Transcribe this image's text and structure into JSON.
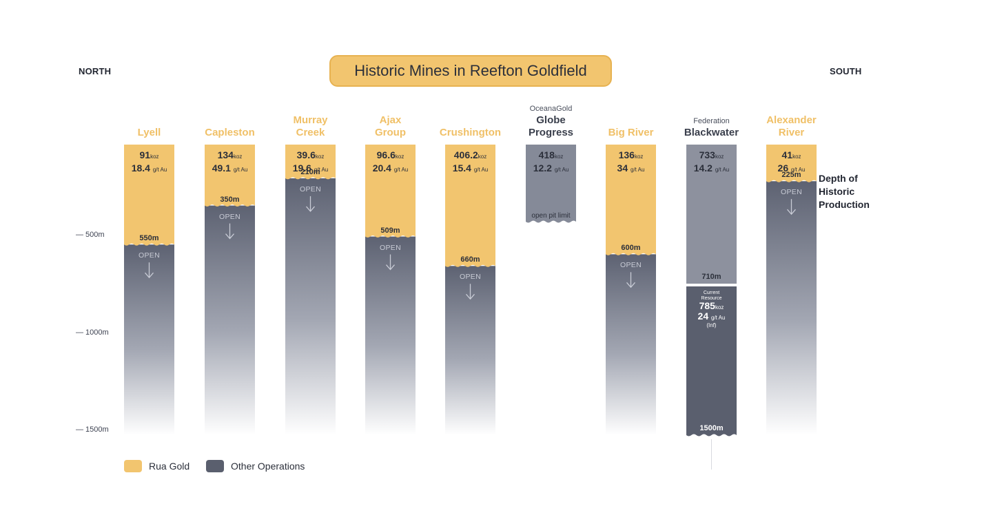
{
  "direction": {
    "north": "NORTH",
    "south": "SOUTH"
  },
  "title": "Historic Mines in Reefton Goldfield",
  "side_note": {
    "line1": "Depth of",
    "line2": "Historic",
    "line3": "Production"
  },
  "legend": [
    {
      "label": "Rua Gold",
      "color": "#f2c56f"
    },
    {
      "label": "Other Operations",
      "color": "#5a5f6e"
    }
  ],
  "colors": {
    "rua": "#f2c56f",
    "rua_edge": "#e7b251",
    "other": "#858a98",
    "open_top": "#5d6272",
    "current_resource": "#5a5f6e"
  },
  "chart_data": {
    "type": "bar",
    "title": "Historic Mines in Reefton Goldfield",
    "y_axis": {
      "ticks": [
        "500m",
        "1000m",
        "1500m"
      ],
      "tick_values": [
        500,
        1000,
        1500
      ],
      "range": [
        0,
        1500
      ],
      "inverted": true
    },
    "mines": [
      {
        "name": "Lyell",
        "operator": "",
        "group": "rua",
        "koz": "91",
        "koz_unit": "koz",
        "grade": "18.4",
        "grade_unit": "g/t Au",
        "depth_m": 550,
        "depth_label": "550m",
        "open": "OPEN"
      },
      {
        "name": "Capleston",
        "operator": "",
        "group": "rua",
        "koz": "134",
        "koz_unit": "koz",
        "grade": "49.1",
        "grade_unit": "g/t Au",
        "depth_m": 350,
        "depth_label": "350m",
        "open": "OPEN"
      },
      {
        "name": "Murray Creek",
        "name_lines": [
          "Murray",
          "Creek"
        ],
        "operator": "",
        "group": "rua",
        "koz": "39.6",
        "koz_unit": "koz",
        "grade": "19.6",
        "grade_unit": "g/t Au",
        "depth_m": 210,
        "depth_label": "210m",
        "open": "OPEN"
      },
      {
        "name": "Ajax Group",
        "name_lines": [
          "Ajax",
          "Group"
        ],
        "operator": "",
        "group": "rua",
        "koz": "96.6",
        "koz_unit": "koz",
        "grade": "20.4",
        "grade_unit": "g/t Au",
        "depth_m": 509,
        "depth_label": "509m",
        "open": "OPEN"
      },
      {
        "name": "Crushington",
        "operator": "",
        "group": "rua",
        "koz": "406.2",
        "koz_unit": "koz",
        "grade": "15.4",
        "grade_unit": "g/t Au",
        "depth_m": 660,
        "depth_label": "660m",
        "open": "OPEN"
      },
      {
        "name": "Globe Progress",
        "name_lines": [
          "Globe",
          "Progress"
        ],
        "operator": "OceanaGold",
        "group": "other",
        "koz": "418",
        "koz_unit": "koz",
        "grade": "12.2",
        "grade_unit": "g/t Au",
        "depth_label": "open pit limit",
        "type": "open_pit"
      },
      {
        "name": "Big River",
        "operator": "",
        "group": "rua",
        "koz": "136",
        "koz_unit": "koz",
        "grade": "34",
        "grade_unit": "g/t Au",
        "depth_m": 600,
        "depth_label": "600m",
        "open": "OPEN"
      },
      {
        "name": "Blackwater",
        "operator": "Federation",
        "group": "other",
        "koz": "733",
        "koz_unit": "koz",
        "grade": "14.2",
        "grade_unit": "g/t Au",
        "depth_m": 710,
        "depth_label": "710m",
        "current_resource": {
          "label_line1": "Current",
          "label_line2": "Resource",
          "koz": "785",
          "koz_unit": "koz",
          "grade": "24",
          "grade_unit": "g/t Au",
          "note": "(Inf)",
          "bottom_m": 1500,
          "bottom_label": "1500m"
        }
      },
      {
        "name": "Alexander River",
        "name_lines": [
          "Alexander",
          "River"
        ],
        "operator": "",
        "group": "rua",
        "koz": "41",
        "koz_unit": "koz",
        "grade": "26",
        "grade_unit": "g/t Au",
        "depth_m": 225,
        "depth_label": "225m",
        "open": "OPEN"
      }
    ]
  }
}
